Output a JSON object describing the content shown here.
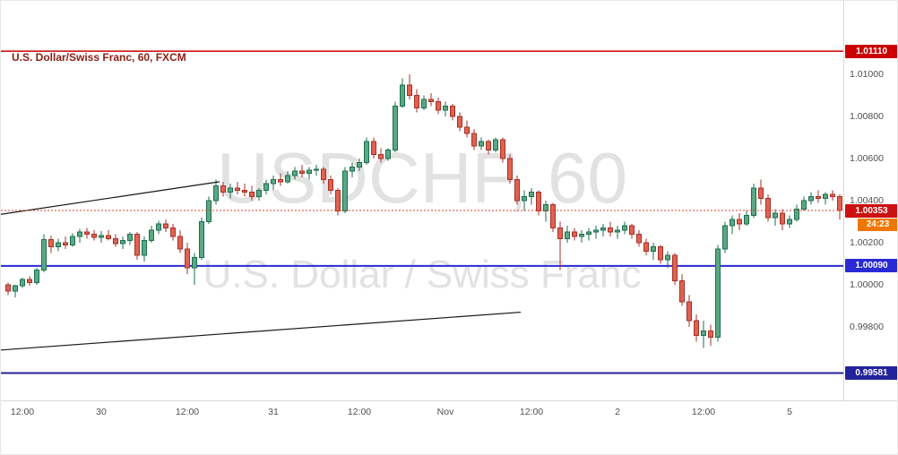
{
  "legend": {
    "title": "U.S. Dollar/Swiss Franc, 60, FXCM"
  },
  "watermark": {
    "line1": "USDCHF, 60",
    "line2": "U.S. Dollar / Swiss Franc"
  },
  "colors": {
    "up_fill": "#5aa884",
    "up_border": "#1d6e4f",
    "down_fill": "#e06252",
    "down_border": "#a43127",
    "trendline": "#161616",
    "watermark": "#e2e2e2",
    "legend_text": "#8b1e15",
    "axis_text": "#4f4f4f"
  },
  "chart_data": {
    "type": "candlestick",
    "symbol": "USDCHF",
    "interval": "60",
    "exchange": "FXCM",
    "title": "U.S. Dollar/Swiss Franc, 60, FXCM",
    "y_axis": {
      "range": [
        0.99451,
        1.01349
      ],
      "ticks": [
        {
          "price": 1.01,
          "label": "1.01000"
        },
        {
          "price": 1.008,
          "label": "1.00800"
        },
        {
          "price": 1.006,
          "label": "1.00600"
        },
        {
          "price": 1.004,
          "label": "1.00400"
        },
        {
          "price": 1.002,
          "label": "1.00200"
        },
        {
          "price": 1.0,
          "label": "1.00000"
        },
        {
          "price": 0.998,
          "label": "0.99800"
        }
      ]
    },
    "x_axis": {
      "ticks": [
        {
          "index": 2,
          "label": "12:00"
        },
        {
          "index": 13,
          "label": "30"
        },
        {
          "index": 25,
          "label": "12:00"
        },
        {
          "index": 37,
          "label": "31"
        },
        {
          "index": 49,
          "label": "12:00"
        },
        {
          "index": 61,
          "label": "Nov"
        },
        {
          "index": 73,
          "label": "12:00"
        },
        {
          "index": 85,
          "label": "2"
        },
        {
          "index": 97,
          "label": "12:00"
        },
        {
          "index": 109,
          "label": "5"
        }
      ]
    },
    "levels": [
      {
        "label": "1.01110",
        "price": 1.0111,
        "color": "#cc0000",
        "width": 1.5
      },
      {
        "label": "1.00090",
        "price": 1.0009,
        "color": "#2a2ad4",
        "width": 2
      },
      {
        "label": "0.99581",
        "price": 0.99581,
        "color": "#23239b",
        "width": 2
      }
    ],
    "last_price": {
      "label": "1.00353",
      "price": 1.00353,
      "countdown": "24:23",
      "line_color": "#e0402a",
      "badge_color": "#cc1111",
      "countdown_color": "#ee7700"
    },
    "trendlines": [
      {
        "from": {
          "index": -1,
          "price": 1.00335
        },
        "to": {
          "index": 29.5,
          "price": 1.0049
        }
      },
      {
        "from": {
          "index": -1,
          "price": 0.9969
        },
        "to": {
          "index": 71.5,
          "price": 0.9987
        }
      }
    ],
    "candles": [
      [
        1.0,
        1.0001,
        0.9995,
        0.9997
      ],
      [
        0.9997,
        1.0,
        0.9994,
        0.99995
      ],
      [
        0.99995,
        1.00035,
        0.99985,
        1.00025
      ],
      [
        1.00025,
        1.0004,
        0.99995,
        1.0001
      ],
      [
        1.0001,
        1.0008,
        1.0,
        1.0007
      ],
      [
        1.0007,
        1.0024,
        1.0006,
        1.00215
      ],
      [
        1.00215,
        1.00235,
        1.0015,
        1.0018
      ],
      [
        1.0018,
        1.0022,
        1.0016,
        1.002
      ],
      [
        1.002,
        1.0023,
        1.0017,
        1.0019
      ],
      [
        1.0019,
        1.00245,
        1.0018,
        1.0023
      ],
      [
        1.0023,
        1.00265,
        1.002,
        1.0025
      ],
      [
        1.0025,
        1.0027,
        1.0022,
        1.0024
      ],
      [
        1.0024,
        1.0026,
        1.0021,
        1.00225
      ],
      [
        1.00225,
        1.00255,
        1.002,
        1.00235
      ],
      [
        1.00235,
        1.0026,
        1.0021,
        1.0022
      ],
      [
        1.0022,
        1.0024,
        1.0018,
        1.00195
      ],
      [
        1.00195,
        1.0023,
        1.0017,
        1.0021
      ],
      [
        1.0021,
        1.0025,
        1.0019,
        1.0024
      ],
      [
        1.0024,
        1.0025,
        1.0012,
        1.0014
      ],
      [
        1.0014,
        1.0023,
        1.0011,
        1.0021
      ],
      [
        1.0021,
        1.0028,
        1.002,
        1.0026
      ],
      [
        1.0026,
        1.00305,
        1.0024,
        1.0029
      ],
      [
        1.0029,
        1.0031,
        1.0025,
        1.0027
      ],
      [
        1.0027,
        1.0029,
        1.0021,
        1.0023
      ],
      [
        1.0023,
        1.0026,
        1.0015,
        1.0017
      ],
      [
        1.0017,
        1.002,
        1.0005,
        1.0008
      ],
      [
        1.0008,
        1.0015,
        1.0,
        1.0013
      ],
      [
        1.0013,
        1.0032,
        1.0012,
        1.003
      ],
      [
        1.003,
        1.0042,
        1.0029,
        1.004
      ],
      [
        1.004,
        1.005,
        1.0038,
        1.0047
      ],
      [
        1.0047,
        1.0049,
        1.0042,
        1.0044
      ],
      [
        1.0044,
        1.0048,
        1.0041,
        1.0046
      ],
      [
        1.0046,
        1.0049,
        1.0043,
        1.0045
      ],
      [
        1.0045,
        1.0048,
        1.0042,
        1.0044
      ],
      [
        1.0044,
        1.0047,
        1.004,
        1.0042
      ],
      [
        1.0042,
        1.0046,
        1.004,
        1.0045
      ],
      [
        1.0045,
        1.005,
        1.0043,
        1.0048
      ],
      [
        1.0048,
        1.0052,
        1.0045,
        1.005
      ],
      [
        1.005,
        1.0053,
        1.0047,
        1.0049
      ],
      [
        1.0049,
        1.0054,
        1.0048,
        1.0052
      ],
      [
        1.0052,
        1.0056,
        1.005,
        1.0054
      ],
      [
        1.0054,
        1.0057,
        1.0051,
        1.0053
      ],
      [
        1.0053,
        1.0056,
        1.005,
        1.00545
      ],
      [
        1.00545,
        1.0057,
        1.0052,
        1.0055
      ],
      [
        1.0055,
        1.0056,
        1.0048,
        1.005
      ],
      [
        1.005,
        1.0052,
        1.0043,
        1.0045
      ],
      [
        1.0045,
        1.0046,
        1.0033,
        1.0035
      ],
      [
        1.0035,
        1.0056,
        1.0034,
        1.0054
      ],
      [
        1.0054,
        1.0058,
        1.0051,
        1.0056
      ],
      [
        1.0056,
        1.006,
        1.0054,
        1.0058
      ],
      [
        1.0058,
        1.007,
        1.0057,
        1.0068
      ],
      [
        1.0068,
        1.007,
        1.006,
        1.0062
      ],
      [
        1.0062,
        1.0065,
        1.0058,
        1.006
      ],
      [
        1.006,
        1.0065,
        1.0059,
        1.0064
      ],
      [
        1.0064,
        1.0087,
        1.0063,
        1.0085
      ],
      [
        1.0085,
        1.0098,
        1.0084,
        1.0095
      ],
      [
        1.0095,
        1.01,
        1.0088,
        1.009
      ],
      [
        1.009,
        1.0093,
        1.0082,
        1.0084
      ],
      [
        1.0084,
        1.009,
        1.0083,
        1.0088
      ],
      [
        1.0088,
        1.0091,
        1.0085,
        1.0087
      ],
      [
        1.0087,
        1.0089,
        1.0081,
        1.0083
      ],
      [
        1.0083,
        1.0087,
        1.008,
        1.0085
      ],
      [
        1.0085,
        1.0086,
        1.0078,
        1.008
      ],
      [
        1.008,
        1.0082,
        1.0073,
        1.0075
      ],
      [
        1.0075,
        1.0078,
        1.007,
        1.0072
      ],
      [
        1.0072,
        1.0074,
        1.0064,
        1.0066
      ],
      [
        1.0066,
        1.007,
        1.0064,
        1.0068
      ],
      [
        1.0068,
        1.0069,
        1.0062,
        1.0064
      ],
      [
        1.0064,
        1.007,
        1.0063,
        1.0069
      ],
      [
        1.0069,
        1.007,
        1.0058,
        1.006
      ],
      [
        1.006,
        1.0062,
        1.0048,
        1.005
      ],
      [
        1.005,
        1.0052,
        1.0038,
        1.004
      ],
      [
        1.004,
        1.0045,
        1.0035,
        1.0042
      ],
      [
        1.0042,
        1.0046,
        1.0038,
        1.0044
      ],
      [
        1.0044,
        1.0045,
        1.0033,
        1.0035
      ],
      [
        1.0035,
        1.004,
        1.003,
        1.0038
      ],
      [
        1.0038,
        1.0039,
        1.0025,
        1.0027
      ],
      [
        1.0027,
        1.003,
        1.0007,
        1.0022
      ],
      [
        1.0022,
        1.0028,
        1.002,
        1.0025
      ],
      [
        1.0025,
        1.0027,
        1.0021,
        1.0023
      ],
      [
        1.0023,
        1.0026,
        1.002,
        1.0024
      ],
      [
        1.0024,
        1.0027,
        1.0021,
        1.0025
      ],
      [
        1.0025,
        1.0028,
        1.0022,
        1.0026
      ],
      [
        1.0026,
        1.0029,
        1.0023,
        1.0027
      ],
      [
        1.0027,
        1.003,
        1.0023,
        1.0025
      ],
      [
        1.0025,
        1.0028,
        1.0022,
        1.0026
      ],
      [
        1.0026,
        1.003,
        1.0024,
        1.0028
      ],
      [
        1.0028,
        1.0029,
        1.0022,
        1.0024
      ],
      [
        1.0024,
        1.0026,
        1.0018,
        1.002
      ],
      [
        1.002,
        1.0022,
        1.0014,
        1.0016
      ],
      [
        1.0016,
        1.002,
        1.0012,
        1.0018
      ],
      [
        1.0018,
        1.0019,
        1.001,
        1.0012
      ],
      [
        1.0012,
        1.0016,
        1.0008,
        1.0014
      ],
      [
        1.0014,
        1.0015,
        1.0,
        1.0002
      ],
      [
        1.0002,
        1.0005,
        0.999,
        0.9992
      ],
      [
        0.9992,
        0.9995,
        0.998,
        0.9983
      ],
      [
        0.9983,
        0.9986,
        0.9973,
        0.9976
      ],
      [
        0.9976,
        0.9983,
        0.997,
        0.9978
      ],
      [
        0.9978,
        0.9981,
        0.9971,
        0.9975
      ],
      [
        0.9975,
        1.0019,
        0.9973,
        1.0017
      ],
      [
        1.0017,
        1.003,
        1.0015,
        1.0028
      ],
      [
        1.0028,
        1.0033,
        1.0024,
        1.0031
      ],
      [
        1.0031,
        1.0034,
        1.0026,
        1.0029
      ],
      [
        1.0029,
        1.0035,
        1.0028,
        1.0033
      ],
      [
        1.0033,
        1.0048,
        1.0032,
        1.0046
      ],
      [
        1.0046,
        1.005,
        1.0038,
        1.0041
      ],
      [
        1.0041,
        1.0043,
        1.003,
        1.0032
      ],
      [
        1.0032,
        1.0036,
        1.0028,
        1.0034
      ],
      [
        1.0034,
        1.0036,
        1.0026,
        1.0029
      ],
      [
        1.0029,
        1.0033,
        1.0027,
        1.0031
      ],
      [
        1.0031,
        1.0038,
        1.003,
        1.0036
      ],
      [
        1.0036,
        1.0042,
        1.0035,
        1.004
      ],
      [
        1.004,
        1.0044,
        1.0038,
        1.0042
      ],
      [
        1.0042,
        1.0045,
        1.0039,
        1.0041
      ],
      [
        1.0041,
        1.0044,
        1.0038,
        1.0043
      ],
      [
        1.0043,
        1.0045,
        1.004,
        1.0042
      ],
      [
        1.0042,
        1.0043,
        1.0031,
        1.00353
      ]
    ]
  }
}
